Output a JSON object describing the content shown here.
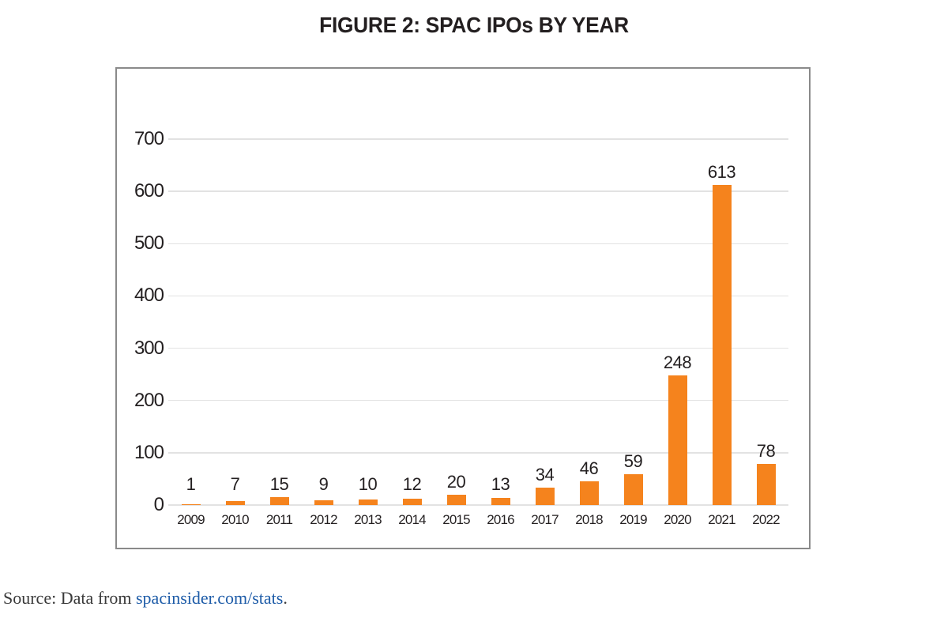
{
  "title": "FIGURE 2: SPAC IPOs BY YEAR",
  "source": {
    "prefix": "Source: Data from ",
    "link_text": "spacinsider.com/stats",
    "suffix": "."
  },
  "colors": {
    "bar": "#F5831D",
    "title_text": "#231F20",
    "axis_text": "#231F20",
    "gridline": "#E2E2E2",
    "frame_border": "#8A8A8A",
    "source_text": "#3A3A3A",
    "link": "#1E5CA8",
    "page_bg": "#FFFFFF"
  },
  "chart_data": {
    "type": "bar",
    "title": "FIGURE 2: SPAC IPOs BY YEAR",
    "categories": [
      "2009",
      "2010",
      "2011",
      "2012",
      "2013",
      "2014",
      "2015",
      "2016",
      "2017",
      "2018",
      "2019",
      "2020",
      "2021",
      "2022"
    ],
    "values": [
      1,
      7,
      15,
      9,
      10,
      12,
      20,
      13,
      34,
      46,
      59,
      248,
      613,
      78
    ],
    "xlabel": "",
    "ylabel": "",
    "ylim": [
      0,
      700
    ],
    "yticks": [
      0,
      100,
      200,
      300,
      400,
      500,
      600,
      700
    ],
    "grid": true,
    "grid_axis": "y",
    "legend": false,
    "data_labels": true,
    "bar_color": "#F5831D"
  }
}
